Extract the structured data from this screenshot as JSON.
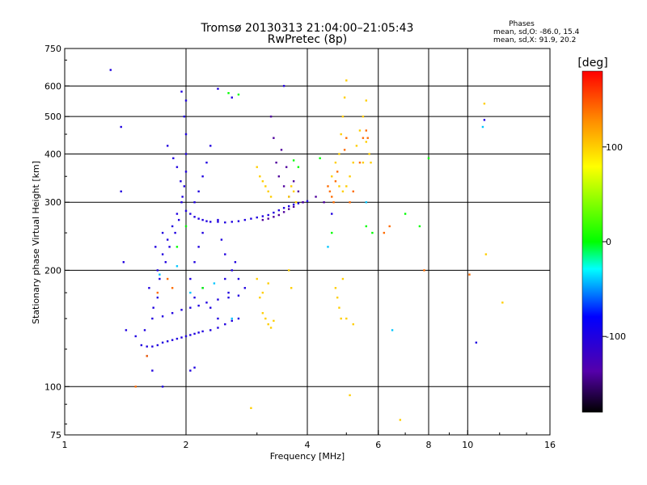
{
  "header": {
    "title_line1": "Tromsø 20130313 21:04:00–21:05:43",
    "title_line2": "RwPretec (8p)"
  },
  "stats": {
    "label": "Phases",
    "line_o": "mean, sd,O: -86.0, 15.4",
    "line_x": "mean, sd,X:  91.9, 20.2"
  },
  "colorbar": {
    "label": "[deg]",
    "range": [
      -180,
      180
    ],
    "ticks": [
      100,
      0,
      -100
    ],
    "tick_labels": [
      "100",
      "0",
      "-100"
    ]
  },
  "chart_data": {
    "type": "scatter",
    "xlabel": "Frequency [MHz]",
    "ylabel": "Stationary phase Virtual Height [km]",
    "xscale": "log",
    "yscale": "log",
    "xlim": [
      1,
      16
    ],
    "ylim": [
      75,
      750
    ],
    "grid": true,
    "x_ticks": [
      1,
      2,
      4,
      6,
      8,
      10,
      16
    ],
    "x_tick_labels": [
      "1",
      "2",
      "4",
      "6",
      "8",
      "10",
      "16"
    ],
    "y_ticks": [
      75,
      100,
      200,
      300,
      400,
      500,
      600,
      750
    ],
    "y_tick_labels": [
      "75",
      "100",
      "200",
      "300",
      "400",
      "500",
      "600",
      "750"
    ],
    "series": [
      {
        "color_value": -100,
        "points": [
          [
            1.55,
            128
          ],
          [
            1.6,
            127
          ],
          [
            1.65,
            127
          ],
          [
            1.7,
            128
          ],
          [
            1.75,
            130
          ],
          [
            1.8,
            131
          ],
          [
            1.85,
            132
          ],
          [
            1.9,
            133
          ],
          [
            1.95,
            134
          ],
          [
            2.0,
            135
          ],
          [
            2.05,
            136
          ],
          [
            2.1,
            137
          ],
          [
            2.15,
            138
          ],
          [
            2.2,
            139
          ],
          [
            2.3,
            140
          ],
          [
            2.4,
            142
          ],
          [
            2.5,
            145
          ],
          [
            2.6,
            148
          ],
          [
            2.7,
            150
          ],
          [
            1.65,
            150
          ],
          [
            1.75,
            152
          ],
          [
            1.85,
            155
          ],
          [
            1.95,
            158
          ],
          [
            2.05,
            160
          ],
          [
            2.15,
            162
          ],
          [
            2.25,
            165
          ],
          [
            2.4,
            168
          ],
          [
            2.55,
            170
          ],
          [
            2.7,
            172
          ],
          [
            2.0,
            285
          ],
          [
            2.05,
            280
          ],
          [
            2.1,
            275
          ],
          [
            2.15,
            272
          ],
          [
            2.2,
            270
          ],
          [
            2.25,
            268
          ],
          [
            2.3,
            267
          ],
          [
            2.4,
            267
          ],
          [
            2.5,
            266
          ],
          [
            2.6,
            267
          ],
          [
            2.7,
            268
          ],
          [
            2.8,
            270
          ],
          [
            2.9,
            272
          ],
          [
            3.0,
            274
          ],
          [
            3.1,
            276
          ],
          [
            3.2,
            278
          ],
          [
            3.3,
            282
          ],
          [
            3.4,
            286
          ],
          [
            3.5,
            290
          ],
          [
            3.6,
            293
          ],
          [
            3.7,
            296
          ],
          [
            3.8,
            298
          ],
          [
            3.9,
            300
          ],
          [
            4.0,
            302
          ],
          [
            1.7,
            200
          ],
          [
            1.75,
            220
          ],
          [
            1.8,
            240
          ],
          [
            1.85,
            260
          ],
          [
            1.9,
            280
          ],
          [
            1.95,
            300
          ],
          [
            1.98,
            330
          ],
          [
            2.0,
            360
          ],
          [
            2.0,
            400
          ],
          [
            2.0,
            450
          ],
          [
            1.98,
            500
          ],
          [
            2.0,
            550
          ],
          [
            1.95,
            580
          ],
          [
            1.7,
            170
          ],
          [
            1.72,
            190
          ],
          [
            1.78,
            210
          ],
          [
            1.82,
            230
          ],
          [
            1.88,
            250
          ],
          [
            1.92,
            270
          ],
          [
            1.96,
            310
          ],
          [
            1.94,
            340
          ],
          [
            1.9,
            370
          ],
          [
            1.86,
            390
          ],
          [
            1.8,
            420
          ],
          [
            1.75,
            250
          ],
          [
            1.68,
            230
          ],
          [
            1.62,
            180
          ],
          [
            1.66,
            160
          ],
          [
            1.58,
            140
          ],
          [
            2.1,
            300
          ],
          [
            2.15,
            320
          ],
          [
            2.2,
            350
          ],
          [
            2.25,
            380
          ],
          [
            2.3,
            420
          ],
          [
            2.2,
            250
          ],
          [
            2.15,
            230
          ],
          [
            2.1,
            210
          ],
          [
            2.05,
            190
          ],
          [
            2.1,
            170
          ],
          [
            2.2,
            180
          ],
          [
            2.3,
            160
          ],
          [
            2.4,
            150
          ],
          [
            2.4,
            270
          ],
          [
            2.45,
            240
          ],
          [
            2.5,
            220
          ],
          [
            2.6,
            200
          ],
          [
            2.7,
            190
          ],
          [
            2.8,
            180
          ],
          [
            2.5,
            190
          ],
          [
            2.55,
            175
          ],
          [
            2.65,
            210
          ],
          [
            1.3,
            660
          ],
          [
            1.38,
            470
          ],
          [
            1.38,
            320
          ],
          [
            1.4,
            210
          ],
          [
            1.42,
            140
          ],
          [
            1.5,
            135
          ],
          [
            1.6,
            120
          ],
          [
            1.65,
            110
          ],
          [
            1.75,
            100
          ],
          [
            2.05,
            110
          ],
          [
            2.1,
            112
          ],
          [
            2.4,
            590
          ],
          [
            2.6,
            560
          ],
          [
            3.5,
            600
          ],
          [
            4.6,
            280
          ],
          [
            10.5,
            130
          ],
          [
            11.0,
            490
          ]
        ]
      },
      {
        "color_value": -140,
        "points": [
          [
            3.1,
            270
          ],
          [
            3.2,
            272
          ],
          [
            3.3,
            275
          ],
          [
            3.4,
            278
          ],
          [
            3.5,
            283
          ],
          [
            3.6,
            288
          ],
          [
            3.7,
            292
          ],
          [
            3.35,
            380
          ],
          [
            3.4,
            350
          ],
          [
            3.5,
            330
          ],
          [
            3.6,
            310
          ],
          [
            3.55,
            370
          ],
          [
            3.45,
            410
          ],
          [
            3.3,
            440
          ],
          [
            3.25,
            500
          ],
          [
            3.7,
            340
          ],
          [
            3.8,
            320
          ],
          [
            3.9,
            300
          ],
          [
            4.2,
            310
          ],
          [
            4.4,
            300
          ]
        ]
      },
      {
        "color_value": 100,
        "points": [
          [
            3.0,
            370
          ],
          [
            3.05,
            350
          ],
          [
            3.1,
            340
          ],
          [
            3.15,
            330
          ],
          [
            3.2,
            320
          ],
          [
            3.25,
            310
          ],
          [
            3.0,
            190
          ],
          [
            3.05,
            170
          ],
          [
            3.1,
            155
          ],
          [
            3.15,
            150
          ],
          [
            3.2,
            145
          ],
          [
            3.25,
            142
          ],
          [
            3.3,
            148
          ],
          [
            3.1,
            175
          ],
          [
            3.2,
            185
          ],
          [
            3.6,
            310
          ],
          [
            3.65,
            330
          ],
          [
            3.7,
            320
          ],
          [
            3.75,
            300
          ],
          [
            3.6,
            200
          ],
          [
            3.65,
            180
          ],
          [
            4.6,
            350
          ],
          [
            4.7,
            380
          ],
          [
            4.8,
            400
          ],
          [
            4.85,
            450
          ],
          [
            4.9,
            500
          ],
          [
            4.95,
            560
          ],
          [
            5.0,
            620
          ],
          [
            4.8,
            330
          ],
          [
            4.9,
            320
          ],
          [
            5.0,
            330
          ],
          [
            5.1,
            350
          ],
          [
            5.2,
            380
          ],
          [
            5.3,
            420
          ],
          [
            5.4,
            460
          ],
          [
            5.5,
            500
          ],
          [
            5.6,
            550
          ],
          [
            5.7,
            400
          ],
          [
            5.75,
            380
          ],
          [
            5.6,
            430
          ],
          [
            5.5,
            380
          ],
          [
            4.7,
            180
          ],
          [
            4.75,
            170
          ],
          [
            4.8,
            160
          ],
          [
            4.85,
            150
          ],
          [
            5.0,
            150
          ],
          [
            5.2,
            145
          ],
          [
            4.9,
            190
          ],
          [
            2.9,
            88
          ],
          [
            5.1,
            95
          ],
          [
            6.8,
            82
          ],
          [
            12.2,
            165
          ],
          [
            11.1,
            220
          ],
          [
            11.0,
            540
          ]
        ]
      },
      {
        "color_value": 140,
        "points": [
          [
            4.5,
            330
          ],
          [
            4.55,
            320
          ],
          [
            4.6,
            310
          ],
          [
            4.65,
            300
          ],
          [
            4.7,
            340
          ],
          [
            4.75,
            360
          ],
          [
            5.1,
            300
          ],
          [
            5.2,
            320
          ],
          [
            5.4,
            380
          ],
          [
            5.6,
            460
          ],
          [
            5.65,
            440
          ],
          [
            5.0,
            440
          ],
          [
            4.95,
            410
          ],
          [
            1.8,
            190
          ],
          [
            1.85,
            180
          ],
          [
            1.7,
            175
          ],
          [
            1.6,
            120
          ],
          [
            1.5,
            100
          ],
          [
            6.4,
            260
          ],
          [
            6.2,
            250
          ],
          [
            7.8,
            200
          ],
          [
            10.1,
            195
          ],
          [
            5.5,
            440
          ]
        ]
      },
      {
        "color_value": 0,
        "points": [
          [
            2.55,
            575
          ],
          [
            2.7,
            570
          ],
          [
            3.7,
            385
          ],
          [
            3.8,
            370
          ],
          [
            4.3,
            390
          ],
          [
            7.0,
            280
          ],
          [
            8.0,
            390
          ],
          [
            7.6,
            260
          ],
          [
            4.6,
            250
          ],
          [
            5.6,
            260
          ],
          [
            5.8,
            250
          ],
          [
            1.9,
            230
          ],
          [
            2.0,
            260
          ],
          [
            2.2,
            180
          ]
        ]
      },
      {
        "color_value": -40,
        "points": [
          [
            1.72,
            195
          ],
          [
            1.9,
            205
          ],
          [
            2.05,
            175
          ],
          [
            2.35,
            185
          ],
          [
            2.6,
            150
          ],
          [
            4.5,
            230
          ],
          [
            5.6,
            300
          ],
          [
            10.9,
            470
          ],
          [
            6.5,
            140
          ]
        ]
      }
    ]
  }
}
